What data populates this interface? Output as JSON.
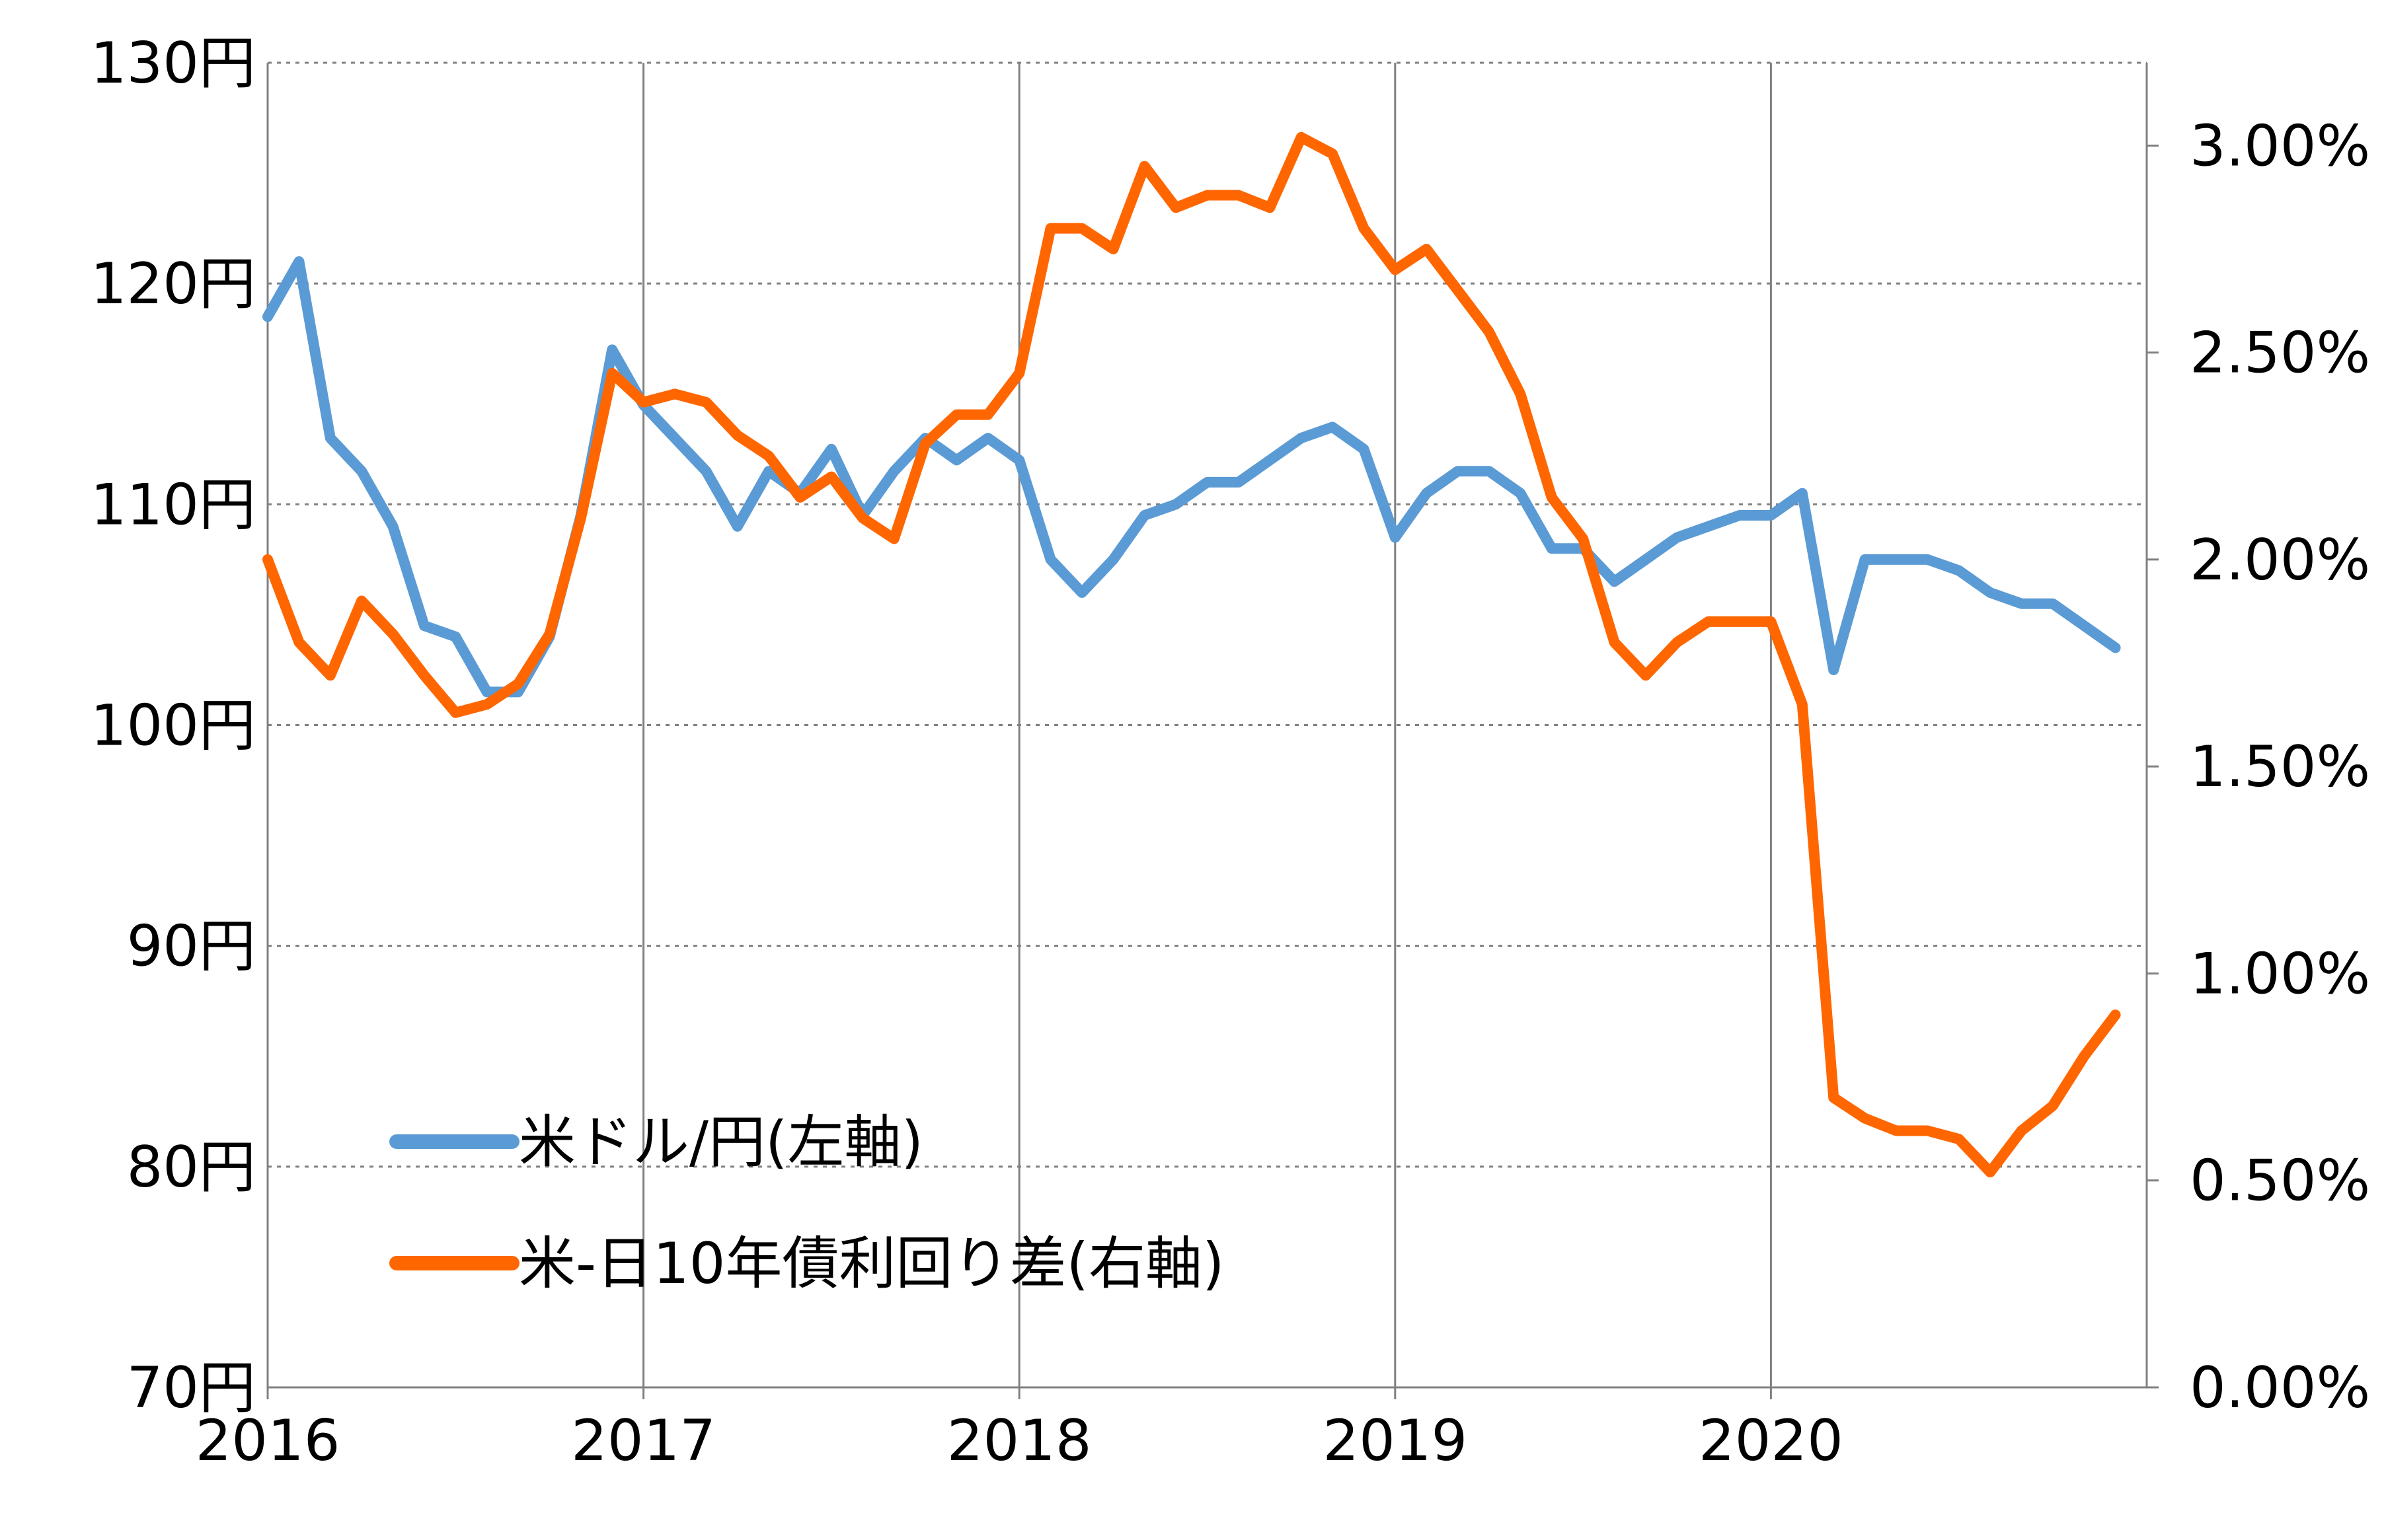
{
  "chart_data": {
    "type": "line",
    "x": [
      "2016-01",
      "2016-02",
      "2016-03",
      "2016-04",
      "2016-05",
      "2016-06",
      "2016-07",
      "2016-08",
      "2016-09",
      "2016-10",
      "2016-11",
      "2016-12",
      "2017-01",
      "2017-02",
      "2017-03",
      "2017-04",
      "2017-05",
      "2017-06",
      "2017-07",
      "2017-08",
      "2017-09",
      "2017-10",
      "2017-11",
      "2017-12",
      "2018-01",
      "2018-02",
      "2018-03",
      "2018-04",
      "2018-05",
      "2018-06",
      "2018-07",
      "2018-08",
      "2018-09",
      "2018-10",
      "2018-11",
      "2018-12",
      "2019-01",
      "2019-02",
      "2019-03",
      "2019-04",
      "2019-05",
      "2019-06",
      "2019-07",
      "2019-08",
      "2019-09",
      "2019-10",
      "2019-11",
      "2019-12",
      "2020-01",
      "2020-02",
      "2020-03",
      "2020-04",
      "2020-05",
      "2020-06",
      "2020-07",
      "2020-08",
      "2020-09",
      "2020-10",
      "2020-11",
      "2020-12"
    ],
    "series": [
      {
        "name": "米ドル/円(左軸)",
        "axis": "left",
        "color": "#5b9bd5",
        "values": [
          118.5,
          121.0,
          113.0,
          111.5,
          109.0,
          104.5,
          104.0,
          101.5,
          101.5,
          104.0,
          109.5,
          117.0,
          114.5,
          113.0,
          111.5,
          109.0,
          111.5,
          110.5,
          112.5,
          109.5,
          111.5,
          113.0,
          112.0,
          113.0,
          112.0,
          107.5,
          106.0,
          107.5,
          109.5,
          110.0,
          111.0,
          111.0,
          112.0,
          113.0,
          113.5,
          112.5,
          108.5,
          110.5,
          111.5,
          111.5,
          110.5,
          108.0,
          108.0,
          106.5,
          107.5,
          108.5,
          109.0,
          109.5,
          109.5,
          110.5,
          102.5,
          107.5,
          107.5,
          107.5,
          107.0,
          106.0,
          105.5,
          105.5,
          104.5,
          103.5
        ]
      },
      {
        "name": "米-日10年債利回り差(右軸)",
        "axis": "right",
        "color": "#ff6600",
        "values": [
          2.0,
          1.8,
          1.72,
          1.9,
          1.82,
          1.72,
          1.63,
          1.65,
          1.7,
          1.82,
          2.1,
          2.45,
          2.38,
          2.4,
          2.38,
          2.3,
          2.25,
          2.15,
          2.2,
          2.1,
          2.05,
          2.28,
          2.35,
          2.35,
          2.45,
          2.8,
          2.8,
          2.75,
          2.95,
          2.85,
          2.88,
          2.88,
          2.85,
          3.02,
          2.98,
          2.8,
          2.7,
          2.75,
          2.65,
          2.55,
          2.4,
          2.15,
          2.05,
          1.8,
          1.72,
          1.8,
          1.85,
          1.85,
          1.85,
          1.65,
          0.7,
          0.65,
          0.62,
          0.62,
          0.6,
          0.52,
          0.62,
          0.68,
          0.8,
          0.9
        ]
      }
    ],
    "xlabel": "",
    "ylabel": "",
    "x_tick_labels": [
      "2016",
      "2017",
      "2018",
      "2019",
      "2020"
    ],
    "y_left": {
      "range": [
        70,
        130
      ],
      "tick_values": [
        70,
        80,
        90,
        100,
        110,
        120,
        130
      ],
      "tick_labels": [
        "70円",
        "80円",
        "90円",
        "100円",
        "110円",
        "120円",
        "130円"
      ]
    },
    "y_right": {
      "range": [
        0,
        3.2
      ],
      "tick_values": [
        0,
        0.5,
        1.0,
        1.5,
        2.0,
        2.5,
        3.0
      ],
      "tick_labels": [
        "0.00%",
        "0.50%",
        "1.00%",
        "1.50%",
        "2.00%",
        "2.50%",
        "3.00%"
      ]
    },
    "grid": true,
    "legend_position": "lower-left"
  }
}
